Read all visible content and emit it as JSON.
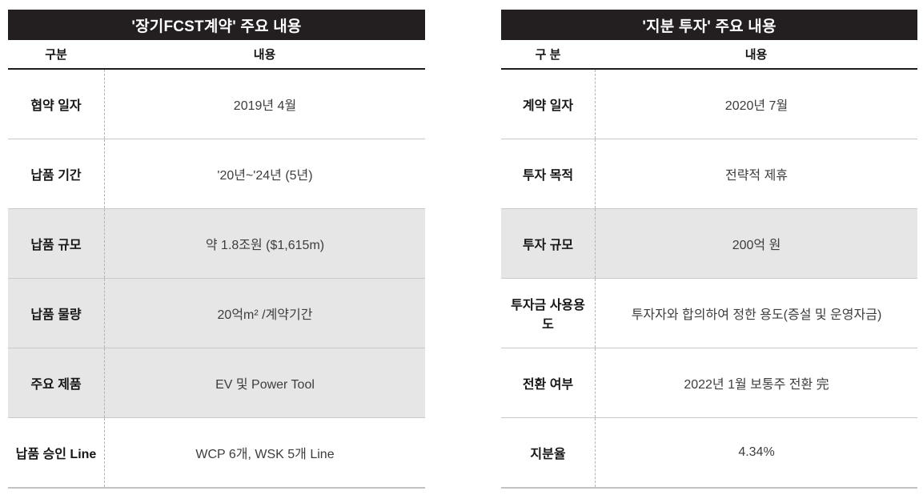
{
  "colors": {
    "title_bar_bg": "#231f20",
    "title_bar_text": "#ffffff",
    "shaded_row_bg": "#e6e6e6",
    "row_divider": "#c9c9c9",
    "header_rule": "#1c1c1c",
    "bottom_rule": "#c2c2c2",
    "value_text": "#3d3d3d"
  },
  "tables": [
    {
      "title": "'장기FCST계약' 주요 내용",
      "columns": {
        "label": "구분",
        "value": "내용"
      },
      "rows": [
        {
          "label": "협약 일자",
          "value": "2019년 4월",
          "shaded": false
        },
        {
          "label": "납품 기간",
          "value": "'20년~'24년 (5년)",
          "shaded": false
        },
        {
          "label": "납품 규모",
          "value": "약 1.8조원 ($1,615m)",
          "shaded": true
        },
        {
          "label": "납품 물량",
          "value": "20억m² /계약기간",
          "shaded": true
        },
        {
          "label": "주요 제품",
          "value": "EV 및 Power Tool",
          "shaded": true
        },
        {
          "label": "납품 승인 Line",
          "value": "WCP 6개, WSK 5개 Line",
          "shaded": false
        }
      ]
    },
    {
      "title": "'지분 투자' 주요 내용",
      "columns": {
        "label": "구 분",
        "value": "내용"
      },
      "rows": [
        {
          "label": "계약 일자",
          "value": "2020년 7월",
          "shaded": false
        },
        {
          "label": "투자 목적",
          "value": "전략적 제휴",
          "shaded": false
        },
        {
          "label": "투자 규모",
          "value": "200억 원",
          "shaded": true
        },
        {
          "label": "투자금 사용용도",
          "value": "투자자와 합의하여 정한 용도(증설 및 운영자금)",
          "shaded": false
        },
        {
          "label": "전환 여부",
          "value": "2022년 1월 보통주 전환 完",
          "shaded": false
        },
        {
          "label": "지분율",
          "value": "4.34%",
          "shaded": false
        }
      ]
    }
  ]
}
